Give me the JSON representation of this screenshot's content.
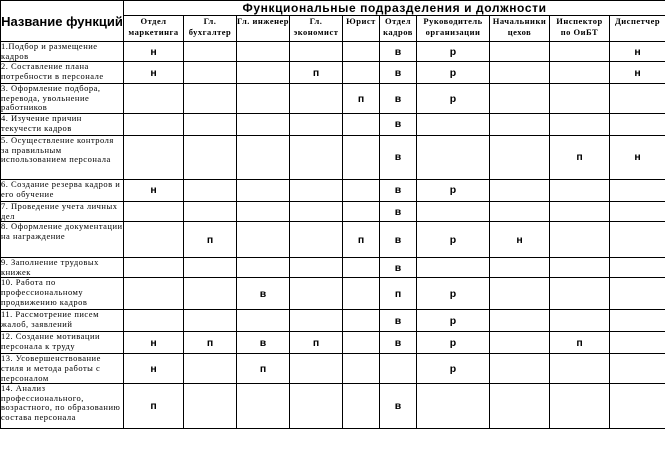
{
  "header": {
    "function_label": "Название функций",
    "group_label": "Функциональные подразделения и должности",
    "departments": [
      "Отдел маркетинга",
      "Гл. бухгалтер",
      "Гл. инженер",
      "Гл. экономист",
      "Юрист",
      "Отдел кадров",
      "Руководитель организации",
      "Начальники цехов",
      "Инспектор по ОиБТ",
      "Диспетчер"
    ]
  },
  "rows": [
    {
      "function": "1.Подбор и размещение кадров",
      "marks": [
        "н",
        "",
        "",
        "",
        "",
        "в",
        "р",
        "",
        "",
        "н"
      ]
    },
    {
      "function": "2. Составление плана потребности в персонале",
      "marks": [
        "н",
        "",
        "",
        "п",
        "",
        "в",
        "р",
        "",
        "",
        "н"
      ]
    },
    {
      "function": "3. Оформление подбора, перевода, увольнение работников",
      "marks": [
        "",
        "",
        "",
        "",
        "п",
        "в",
        "р",
        "",
        "",
        ""
      ]
    },
    {
      "function": "4. Изучение причин текучести кадров",
      "marks": [
        "",
        "",
        "",
        "",
        "",
        "в",
        "",
        "",
        "",
        ""
      ]
    },
    {
      "function": "5. Осуществление контроля за правильным использованием персонала",
      "marks": [
        "",
        "",
        "",
        "",
        "",
        "в",
        "",
        "",
        "п",
        "н"
      ]
    },
    {
      "function": "6. Создание резерва кадров и его обучение",
      "marks": [
        "н",
        "",
        "",
        "",
        "",
        "в",
        "р",
        "",
        "",
        ""
      ]
    },
    {
      "function": "7. Проведение учета личных дел",
      "marks": [
        "",
        "",
        "",
        "",
        "",
        "в",
        "",
        "",
        "",
        ""
      ]
    },
    {
      "function": "8. Оформление документации на награждение",
      "marks": [
        "",
        "п",
        "",
        "",
        "п",
        "в",
        "р",
        "н",
        "",
        ""
      ]
    },
    {
      "function": "9. Заполнение трудовых книжек",
      "marks": [
        "",
        "",
        "",
        "",
        "",
        "в",
        "",
        "",
        "",
        ""
      ]
    },
    {
      "function": "10. Работа по профессиональному продвижению кадров",
      "marks": [
        "",
        "",
        "в",
        "",
        "",
        "п",
        "р",
        "",
        "",
        ""
      ]
    },
    {
      "function": "11. Рассмотрение писем жалоб, заявлений",
      "marks": [
        "",
        "",
        "",
        "",
        "",
        "в",
        "р",
        "",
        "",
        ""
      ]
    },
    {
      "function": "12. Создание мотивации персонала к труду",
      "marks": [
        "н",
        "п",
        "в",
        "п",
        "",
        "в",
        "р",
        "",
        "п",
        ""
      ]
    },
    {
      "function": "13. Усовершенствование стиля и метода работы с персоналом",
      "marks": [
        "н",
        "",
        "п",
        "",
        "",
        "",
        "р",
        "",
        "",
        ""
      ]
    },
    {
      "function": "14. Анализ профессионального, возрастного, по образованию состава персонала",
      "marks": [
        "п",
        "",
        "",
        "",
        "",
        "в",
        "",
        "",
        "",
        ""
      ]
    }
  ]
}
